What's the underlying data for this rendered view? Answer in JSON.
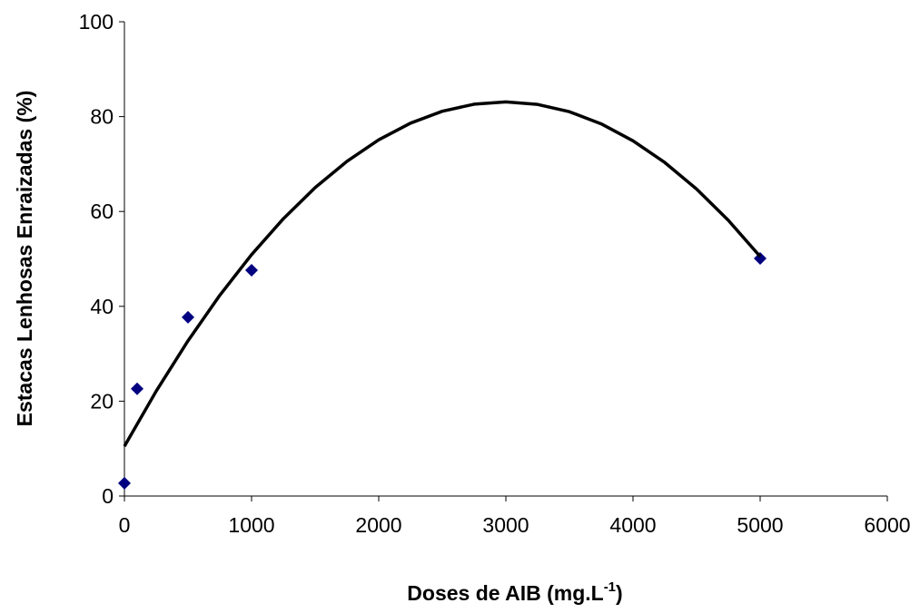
{
  "chart_data": {
    "type": "scatter",
    "x_label": {
      "text": "Doses de AIB (mg.L",
      "sup": "-1",
      "end": ")"
    },
    "y_label": "Estacas Lenhosas Enraizadas (%)",
    "xlim": [
      0,
      6000
    ],
    "xticks": [
      0,
      1000,
      2000,
      3000,
      4000,
      5000,
      6000
    ],
    "ylim": [
      0,
      100
    ],
    "yticks": [
      0,
      20,
      40,
      60,
      80,
      100
    ],
    "series": [
      {
        "kind": "markers",
        "color": "#000080",
        "x": [
          0,
          100,
          500,
          1000,
          5000
        ],
        "values": [
          2.7,
          22.6,
          37.7,
          47.6,
          50.1
        ]
      },
      {
        "kind": "line",
        "color": "#000000",
        "x": [
          0,
          250,
          500,
          750,
          1000,
          1250,
          1500,
          1750,
          2000,
          2250,
          2500,
          2750,
          3000,
          3250,
          3500,
          3750,
          4000,
          4250,
          4500,
          4750,
          5000
        ],
        "values": [
          10.5,
          22.12,
          32.73,
          42.32,
          50.9,
          58.47,
          65.03,
          70.57,
          75.1,
          78.62,
          81.13,
          82.62,
          83.1,
          82.57,
          81.03,
          78.47,
          74.9,
          70.32,
          64.73,
          58.12,
          50.5
        ]
      }
    ]
  }
}
